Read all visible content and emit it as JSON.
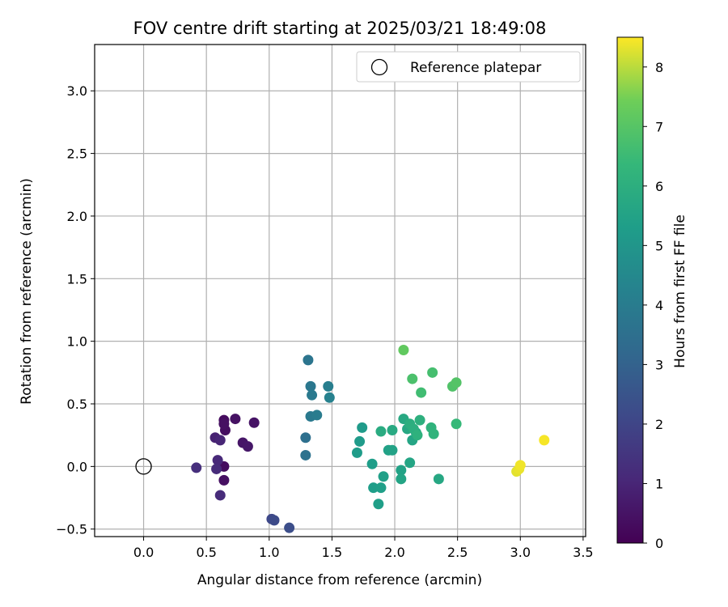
{
  "chart_data": {
    "type": "scatter",
    "title": "FOV centre drift starting at 2025/03/21 18:49:08",
    "xlabel": "Angular distance from reference (arcmin)",
    "ylabel": "Rotation from reference (arcmin)",
    "xlim": [
      -0.39,
      3.52
    ],
    "ylim": [
      -0.56,
      3.37
    ],
    "xticks": [
      0.0,
      0.5,
      1.0,
      1.5,
      2.0,
      2.5,
      3.0,
      3.5
    ],
    "xtick_labels": [
      "0.0",
      "0.5",
      "1.0",
      "1.5",
      "2.0",
      "2.5",
      "3.0",
      "3.5"
    ],
    "yticks": [
      -0.5,
      0.0,
      0.5,
      1.0,
      1.5,
      2.0,
      2.5,
      3.0
    ],
    "ytick_labels": [
      "−0.5",
      "0.0",
      "0.5",
      "1.0",
      "1.5",
      "2.0",
      "2.5",
      "3.0"
    ],
    "grid": true,
    "legend": {
      "label": "Reference platepar",
      "placement": "upper right"
    },
    "reference_point": {
      "x": 0.0,
      "y": 0.0
    },
    "colorbar": {
      "label": "Hours from first FF file",
      "min": 0,
      "max": 8.5,
      "ticks": [
        "0",
        "1",
        "2",
        "3",
        "4",
        "5",
        "6",
        "7",
        "8"
      ],
      "colormap": "viridis"
    },
    "series": [
      {
        "points": [
          {
            "x": 0.64,
            "y": 0.37,
            "hours": 0.3
          },
          {
            "x": 0.65,
            "y": 0.29,
            "hours": 0.35
          },
          {
            "x": 0.64,
            "y": 0.34,
            "hours": 0.4
          },
          {
            "x": 0.73,
            "y": 0.38,
            "hours": 0.45
          },
          {
            "x": 0.88,
            "y": 0.35,
            "hours": 0.5
          },
          {
            "x": 0.79,
            "y": 0.19,
            "hours": 0.55
          },
          {
            "x": 0.83,
            "y": 0.16,
            "hours": 0.6
          },
          {
            "x": 0.64,
            "y": 0.0,
            "hours": 0.3
          },
          {
            "x": 0.64,
            "y": -0.11,
            "hours": 0.4
          },
          {
            "x": 0.57,
            "y": 0.23,
            "hours": 0.9
          },
          {
            "x": 0.61,
            "y": 0.21,
            "hours": 1.0
          },
          {
            "x": 0.59,
            "y": 0.05,
            "hours": 1.1
          },
          {
            "x": 0.58,
            "y": -0.02,
            "hours": 1.2
          },
          {
            "x": 0.42,
            "y": -0.01,
            "hours": 1.3
          },
          {
            "x": 0.61,
            "y": -0.23,
            "hours": 1.2
          },
          {
            "x": 1.02,
            "y": -0.42,
            "hours": 2.1
          },
          {
            "x": 1.04,
            "y": -0.43,
            "hours": 2.2
          },
          {
            "x": 1.16,
            "y": -0.49,
            "hours": 2.3
          },
          {
            "x": 1.29,
            "y": 0.23,
            "hours": 3.5
          },
          {
            "x": 1.29,
            "y": 0.09,
            "hours": 3.6
          },
          {
            "x": 1.31,
            "y": 0.85,
            "hours": 3.7
          },
          {
            "x": 1.33,
            "y": 0.64,
            "hours": 3.8
          },
          {
            "x": 1.34,
            "y": 0.57,
            "hours": 3.9
          },
          {
            "x": 1.33,
            "y": 0.4,
            "hours": 3.9
          },
          {
            "x": 1.38,
            "y": 0.41,
            "hours": 4.0
          },
          {
            "x": 1.47,
            "y": 0.64,
            "hours": 4.1
          },
          {
            "x": 1.48,
            "y": 0.55,
            "hours": 4.2
          },
          {
            "x": 1.74,
            "y": 0.31,
            "hours": 5.2
          },
          {
            "x": 1.72,
            "y": 0.2,
            "hours": 5.2
          },
          {
            "x": 1.7,
            "y": 0.11,
            "hours": 5.25
          },
          {
            "x": 1.82,
            "y": 0.02,
            "hours": 5.3
          },
          {
            "x": 1.83,
            "y": -0.17,
            "hours": 5.3
          },
          {
            "x": 1.89,
            "y": -0.17,
            "hours": 5.35
          },
          {
            "x": 1.87,
            "y": -0.3,
            "hours": 5.35
          },
          {
            "x": 1.91,
            "y": -0.08,
            "hours": 5.4
          },
          {
            "x": 1.95,
            "y": 0.13,
            "hours": 5.45
          },
          {
            "x": 1.98,
            "y": 0.13,
            "hours": 5.5
          },
          {
            "x": 2.05,
            "y": -0.03,
            "hours": 5.5
          },
          {
            "x": 2.05,
            "y": -0.1,
            "hours": 5.55
          },
          {
            "x": 2.12,
            "y": 0.03,
            "hours": 5.6
          },
          {
            "x": 2.14,
            "y": 0.21,
            "hours": 5.6
          },
          {
            "x": 2.17,
            "y": 0.27,
            "hours": 5.65
          },
          {
            "x": 2.1,
            "y": 0.3,
            "hours": 5.7
          },
          {
            "x": 2.07,
            "y": 0.38,
            "hours": 5.75
          },
          {
            "x": 1.98,
            "y": 0.29,
            "hours": 5.8
          },
          {
            "x": 1.89,
            "y": 0.28,
            "hours": 5.85
          },
          {
            "x": 2.35,
            "y": -0.1,
            "hours": 5.7
          },
          {
            "x": 2.12,
            "y": 0.34,
            "hours": 5.95
          },
          {
            "x": 2.15,
            "y": 0.3,
            "hours": 6.0
          },
          {
            "x": 2.2,
            "y": 0.37,
            "hours": 6.05
          },
          {
            "x": 2.18,
            "y": 0.25,
            "hours": 6.1
          },
          {
            "x": 2.29,
            "y": 0.31,
            "hours": 6.15
          },
          {
            "x": 2.31,
            "y": 0.26,
            "hours": 6.2
          },
          {
            "x": 2.49,
            "y": 0.34,
            "hours": 6.4
          },
          {
            "x": 2.21,
            "y": 0.59,
            "hours": 6.6
          },
          {
            "x": 2.3,
            "y": 0.75,
            "hours": 6.7
          },
          {
            "x": 2.14,
            "y": 0.7,
            "hours": 6.8
          },
          {
            "x": 2.46,
            "y": 0.64,
            "hours": 6.9
          },
          {
            "x": 2.49,
            "y": 0.67,
            "hours": 6.95
          },
          {
            "x": 2.07,
            "y": 0.93,
            "hours": 7.2
          },
          {
            "x": 2.97,
            "y": -0.04,
            "hours": 8.3
          },
          {
            "x": 2.99,
            "y": -0.02,
            "hours": 8.35
          },
          {
            "x": 3.0,
            "y": 0.01,
            "hours": 8.4
          },
          {
            "x": 3.19,
            "y": 0.21,
            "hours": 8.45
          }
        ]
      }
    ]
  }
}
